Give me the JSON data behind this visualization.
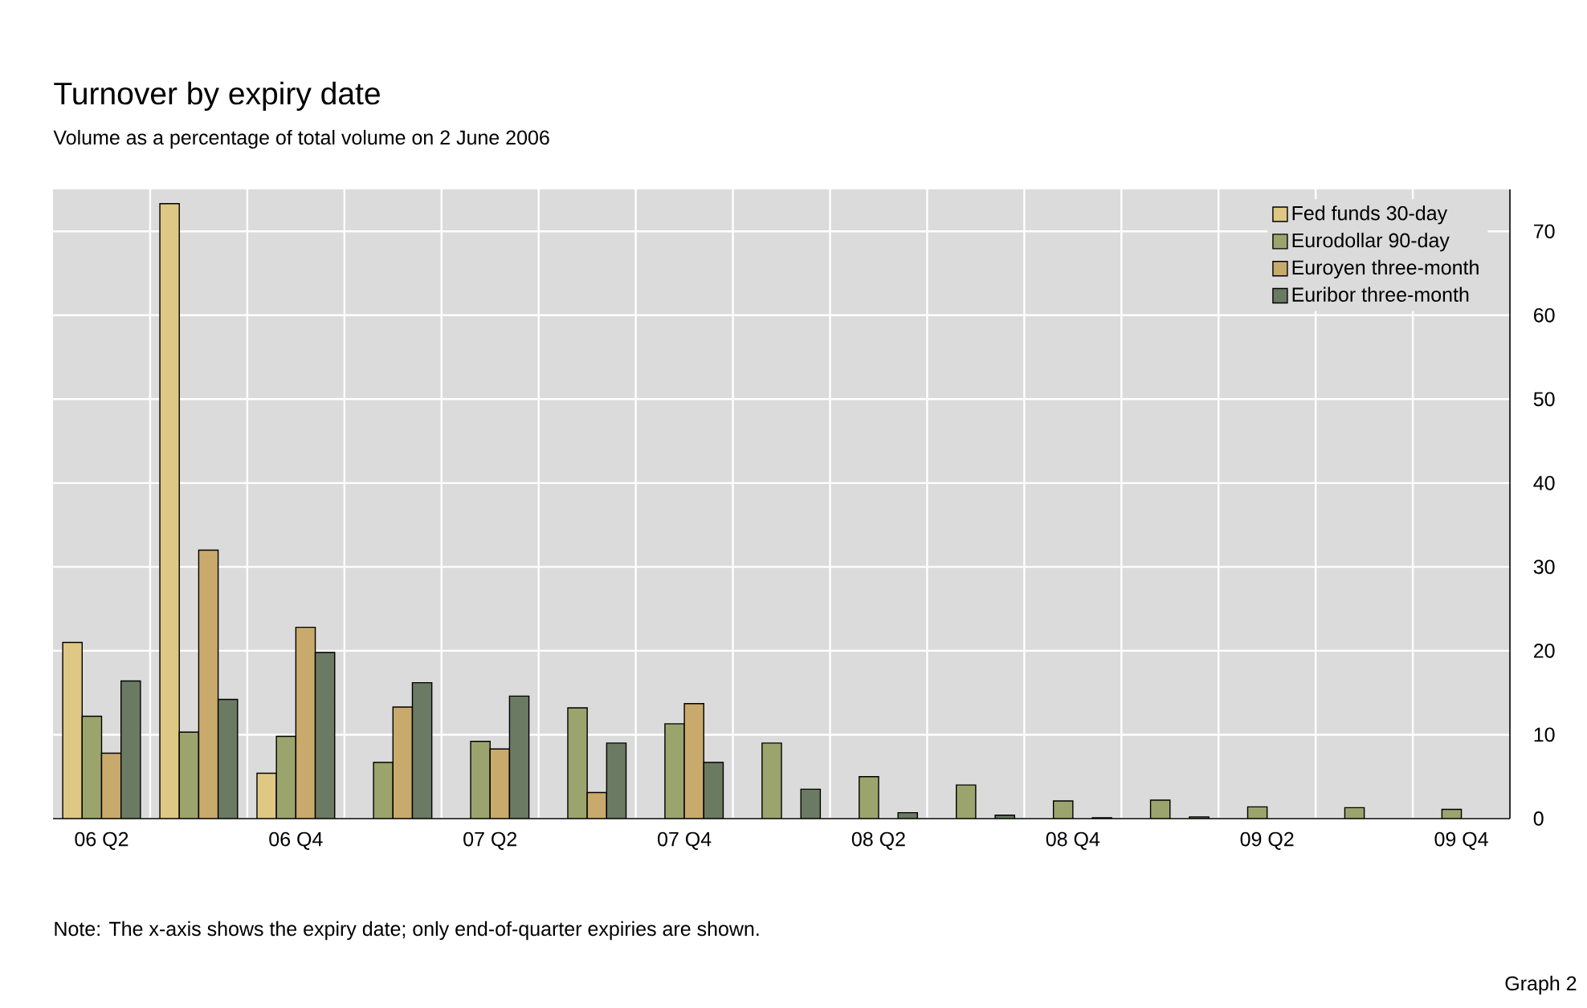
{
  "chart_data": {
    "type": "bar",
    "title": "Turnover by expiry date",
    "subtitle": "Volume as a percentage of total volume on 2 June 2006",
    "categories": [
      "06 Q2",
      null,
      "06 Q4",
      null,
      "07 Q2",
      null,
      "07 Q4",
      null,
      "08 Q2",
      null,
      "08 Q4",
      null,
      "09 Q2",
      null,
      "09 Q4"
    ],
    "series": [
      {
        "name": "Fed funds 30-day",
        "color": "#dfc883",
        "values": [
          21,
          73.3,
          5.4,
          null,
          null,
          null,
          null,
          null,
          null,
          null,
          null,
          null,
          null,
          null,
          null
        ]
      },
      {
        "name": "Eurodollar 90-day",
        "color": "#9ba46c",
        "values": [
          12.2,
          10.3,
          9.8,
          6.7,
          9.2,
          13.2,
          11.3,
          9.0,
          5.0,
          4.0,
          2.1,
          2.2,
          1.4,
          1.3,
          1.1
        ]
      },
      {
        "name": "Euroyen three-month",
        "color": "#c8aa6c",
        "values": [
          7.8,
          32,
          22.8,
          13.3,
          8.3,
          3.1,
          13.7,
          null,
          null,
          null,
          null,
          null,
          null,
          null,
          null
        ]
      },
      {
        "name": "Euribor three-month",
        "color": "#6b7a62",
        "values": [
          16.4,
          14.2,
          19.8,
          16.2,
          14.6,
          9.0,
          6.7,
          3.5,
          0.7,
          0.4,
          0.1,
          0.2,
          null,
          null,
          null
        ]
      }
    ],
    "ylim": [
      0,
      75
    ],
    "yticks": [
      0,
      10,
      20,
      30,
      40,
      50,
      60,
      70
    ],
    "grid": true,
    "legend": "top right",
    "annotations": [
      "Note: The x-axis shows the expiry date; only end-of-quarter expiries are shown.",
      "Graph 2"
    ]
  }
}
